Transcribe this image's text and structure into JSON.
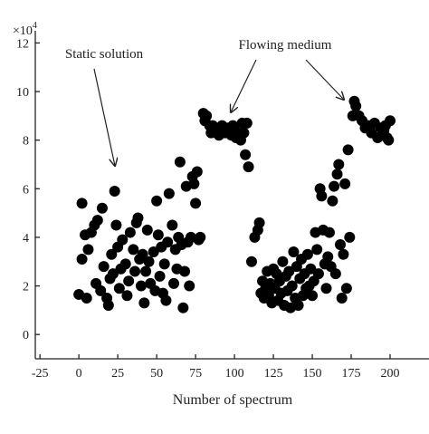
{
  "chart_data": {
    "type": "scatter",
    "x_label": "Number of spectrum",
    "y_multiplier": {
      "base": "×10",
      "exponent": "4"
    },
    "annotations": [
      {
        "text": "Static solution"
      },
      {
        "text": "Flowing medium"
      }
    ],
    "xlim": [
      -28,
      225
    ],
    "ylim": [
      -1,
      12.5
    ],
    "xticks": [
      -25,
      0,
      25,
      50,
      75,
      100,
      125,
      150,
      175,
      200
    ],
    "yticks": [
      0,
      2,
      4,
      6,
      8,
      10,
      12
    ],
    "series": [
      {
        "color": "#000000",
        "x": [
          0,
          5,
          2,
          2,
          4,
          6,
          8,
          10,
          12,
          11,
          14,
          15,
          16,
          18,
          19,
          20,
          21,
          22,
          23,
          24,
          25,
          26,
          27,
          28,
          30,
          31,
          32,
          33,
          35,
          36,
          37,
          38,
          39,
          40,
          41,
          42,
          43,
          44,
          45,
          46,
          48,
          49,
          50,
          51,
          52,
          53,
          54,
          55,
          56,
          57,
          58,
          60,
          61,
          62,
          63,
          64,
          65,
          66,
          67,
          68,
          69,
          70,
          71,
          72,
          73,
          74,
          75,
          76,
          77,
          78,
          80,
          81,
          82,
          84,
          85,
          86,
          88,
          90,
          92,
          94,
          96,
          98,
          99,
          100,
          101,
          102,
          104,
          105,
          106,
          108,
          107,
          109,
          111,
          113,
          115,
          116,
          117,
          118,
          119,
          120,
          121,
          122,
          123,
          124,
          125,
          126,
          127,
          128,
          129,
          130,
          131,
          132,
          133,
          134,
          135,
          136,
          137,
          138,
          139,
          140,
          141,
          142,
          143,
          144,
          145,
          146,
          147,
          148,
          149,
          150,
          151,
          152,
          153,
          154,
          155,
          156,
          157,
          158,
          159,
          160,
          161,
          162,
          163,
          164,
          165,
          166,
          167,
          168,
          169,
          170,
          171,
          172,
          173,
          174,
          176,
          177,
          178,
          180,
          182,
          184,
          186,
          188,
          190,
          192,
          194,
          196,
          198,
          199,
          200,
          197
        ],
        "values": [
          1.65,
          1.5,
          5.4,
          3.1,
          4.1,
          3.5,
          4.2,
          4.5,
          4.7,
          2.1,
          1.8,
          5.2,
          2.8,
          1.5,
          1.2,
          2.3,
          3.3,
          2.5,
          5.9,
          4.5,
          3.6,
          1.9,
          2.7,
          3.9,
          2.9,
          1.6,
          2.2,
          4.2,
          3.5,
          2.6,
          4.6,
          4.8,
          3.1,
          2.0,
          3.3,
          1.3,
          2.6,
          4.3,
          3.0,
          2.1,
          3.4,
          1.8,
          5.5,
          4.1,
          2.4,
          3.6,
          1.7,
          2.9,
          1.4,
          3.8,
          5.8,
          4.5,
          2.1,
          3.5,
          2.7,
          4.0,
          7.1,
          3.7,
          1.1,
          2.6,
          6.1,
          3.8,
          2.0,
          4.0,
          6.5,
          6.2,
          5.4,
          6.7,
          3.9,
          4.0,
          9.1,
          8.8,
          9.0,
          8.6,
          8.3,
          8.6,
          8.5,
          8.2,
          8.6,
          8.3,
          8.5,
          8.2,
          8.6,
          8.4,
          8.1,
          8.3,
          8.0,
          8.7,
          8.3,
          8.7,
          7.4,
          6.9,
          3.0,
          4.0,
          4.3,
          4.6,
          1.7,
          2.2,
          1.5,
          1.9,
          2.6,
          1.6,
          2.1,
          1.3,
          2.7,
          1.9,
          2.5,
          1.4,
          2.2,
          1.7,
          3.0,
          1.2,
          2.4,
          1.8,
          2.6,
          1.1,
          2.0,
          3.4,
          1.5,
          2.8,
          1.2,
          2.3,
          3.1,
          1.6,
          2.5,
          1.9,
          3.3,
          2.0,
          2.7,
          1.6,
          2.2,
          4.2,
          3.5,
          2.5,
          6.0,
          5.7,
          4.3,
          2.9,
          1.9,
          3.2,
          4.2,
          2.8,
          5.5,
          6.1,
          2.5,
          6.6,
          7.0,
          3.7,
          1.5,
          3.3,
          6.2,
          1.9,
          7.6,
          4.0,
          9.0,
          9.6,
          9.4,
          9.0,
          8.8,
          8.5,
          8.6,
          8.3,
          8.7,
          8.1,
          8.5,
          8.4,
          8.1,
          8.0,
          8.8,
          8.6
        ]
      }
    ]
  }
}
